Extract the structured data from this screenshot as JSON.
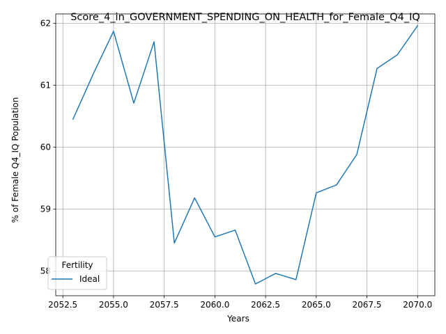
{
  "chart_data": {
    "type": "line",
    "title": "Score_4_in_GOVERNMENT_SPENDING_ON_HEALTH_for_Female_Q4_IQ",
    "xlabel": "Years",
    "ylabel": "% of Female Q4_IQ Population",
    "xlim": [
      2052.15,
      2070.85
    ],
    "ylim": [
      57.6,
      62.15
    ],
    "x_ticks": [
      2052.5,
      2055.0,
      2057.5,
      2060.0,
      2062.5,
      2065.0,
      2067.5,
      2070.0
    ],
    "x_tick_labels": [
      "2052.5",
      "2055.0",
      "2057.5",
      "2060.0",
      "2062.5",
      "2065.0",
      "2067.5",
      "2070.0"
    ],
    "y_ticks": [
      58,
      59,
      60,
      61,
      62
    ],
    "y_tick_labels": [
      "58",
      "59",
      "60",
      "61",
      "62"
    ],
    "grid": true,
    "legend": {
      "title": "Fertility",
      "position": "lower-left"
    },
    "series": [
      {
        "name": "Ideal",
        "color": "#1f77b4",
        "x": [
          2053,
          2054,
          2055,
          2056,
          2057,
          2058,
          2059,
          2060,
          2061,
          2062,
          2063,
          2064,
          2065,
          2066,
          2067,
          2068,
          2069,
          2070
        ],
        "y": [
          60.45,
          61.18,
          61.87,
          60.71,
          61.7,
          58.45,
          59.18,
          58.55,
          58.66,
          57.79,
          57.96,
          57.86,
          59.26,
          59.39,
          59.88,
          61.27,
          61.49,
          61.96
        ]
      }
    ]
  }
}
